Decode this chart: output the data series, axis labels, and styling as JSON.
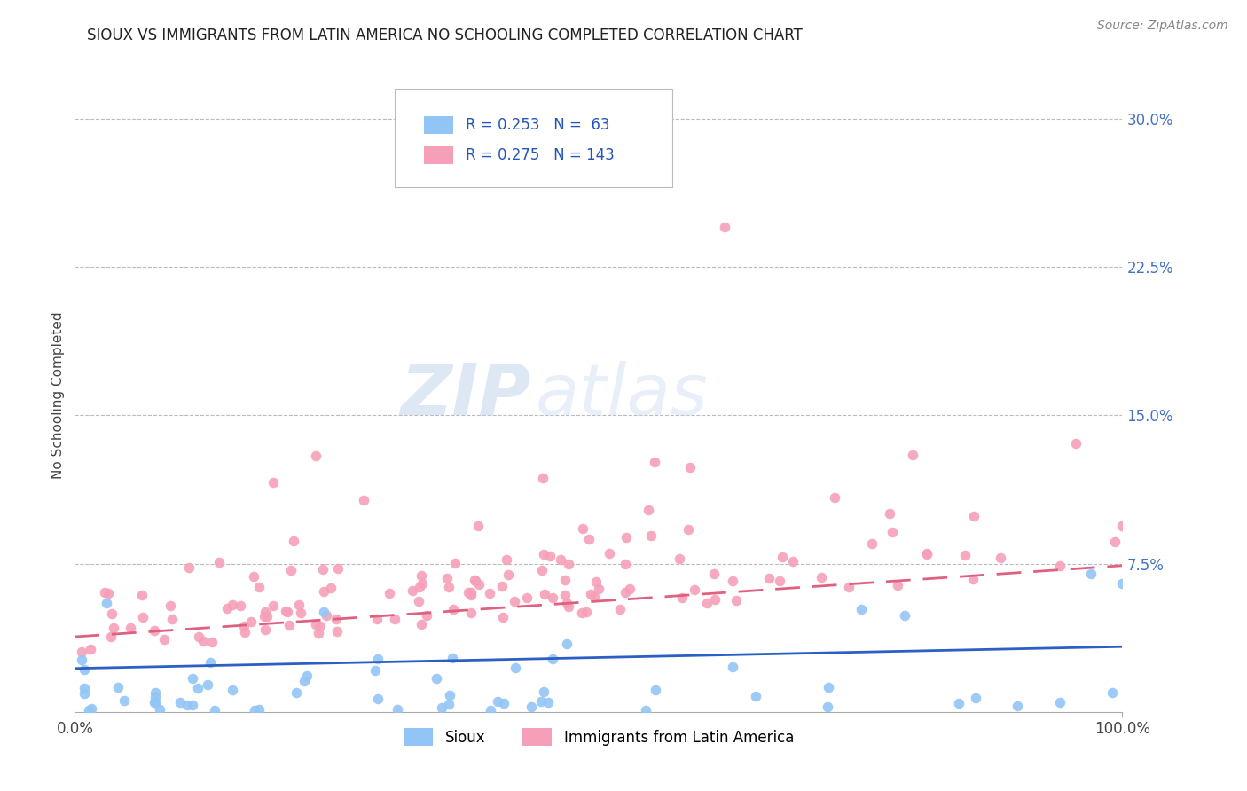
{
  "title": "SIOUX VS IMMIGRANTS FROM LATIN AMERICA NO SCHOOLING COMPLETED CORRELATION CHART",
  "source": "Source: ZipAtlas.com",
  "ylabel": "No Schooling Completed",
  "xmin": 0.0,
  "xmax": 1.0,
  "ymin": 0.0,
  "ymax": 0.32,
  "legend_r1": "R = 0.253",
  "legend_n1": "N =  63",
  "legend_r2": "R = 0.275",
  "legend_n2": "N = 143",
  "color_sioux": "#92C5F5",
  "color_latin": "#F5A0B8",
  "color_line_sioux": "#2B5FC4",
  "color_line_latin": "#E06080",
  "background": "#FFFFFF",
  "grid_color": "#CCCCCC",
  "title_fontsize": 12,
  "label_fontsize": 11,
  "tick_fontsize": 12,
  "source_fontsize": 10,
  "sioux_trend_x": [
    0.0,
    1.0
  ],
  "sioux_trend_y": [
    0.022,
    0.033
  ],
  "latin_trend_x": [
    0.0,
    1.0
  ],
  "latin_trend_y": [
    0.038,
    0.074
  ]
}
